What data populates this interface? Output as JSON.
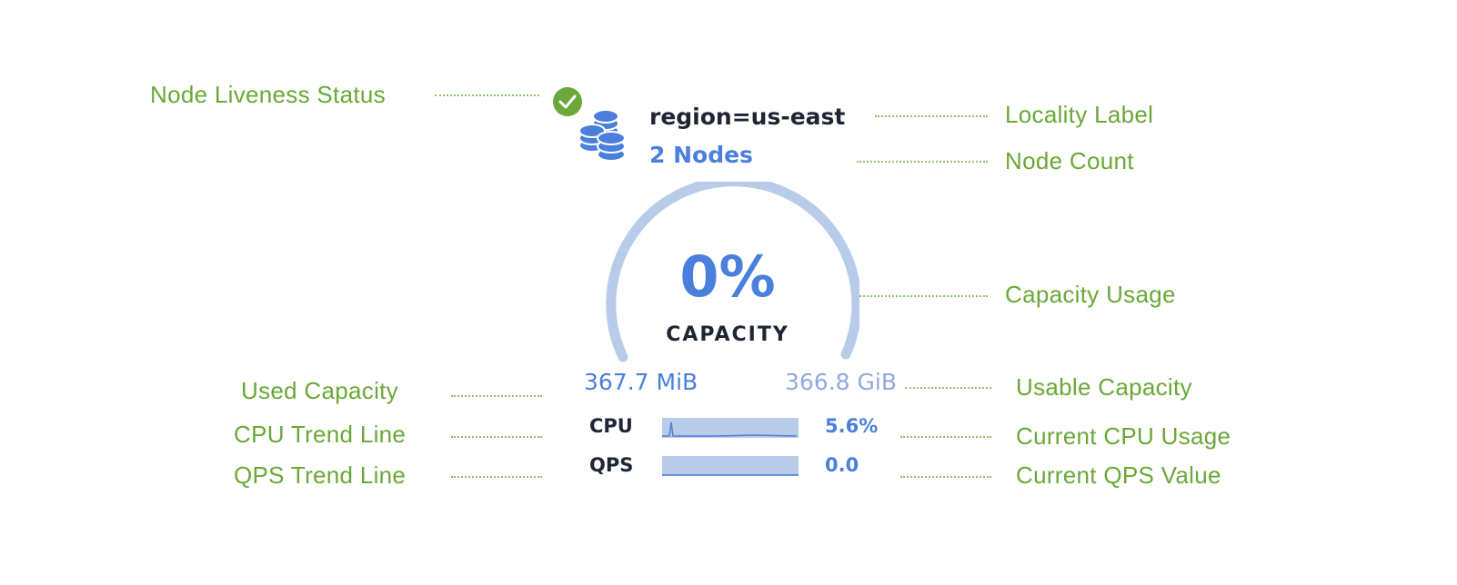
{
  "node": {
    "liveness_status": "live",
    "locality": "region=us-east",
    "node_count": "2 Nodes",
    "capacity_percent": "0%",
    "capacity_label": "CAPACITY",
    "used_capacity": "367.7 MiB",
    "usable_capacity": "366.8 GiB",
    "metrics": [
      {
        "label": "CPU",
        "value": "5.6%"
      },
      {
        "label": "QPS",
        "value": "0.0"
      }
    ]
  },
  "annotations": {
    "liveness": "Node Liveness Status",
    "locality": "Locality Label",
    "node_count": "Node Count",
    "capacity_usage": "Capacity Usage",
    "used_capacity": "Used Capacity",
    "usable_capacity": "Usable Capacity",
    "cpu_trend": "CPU Trend Line",
    "cpu_current": "Current CPU Usage",
    "qps_trend": "QPS Trend Line",
    "qps_current": "Current QPS Value"
  },
  "colors": {
    "accent": "#4a80dc",
    "annotation": "#6aa837",
    "gauge": "#b8cbe8",
    "status_ok": "#6aa837"
  }
}
